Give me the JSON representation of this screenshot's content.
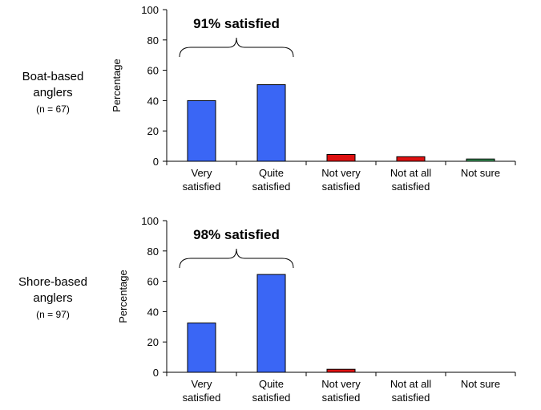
{
  "chart_data": [
    {
      "type": "bar",
      "group_label_lines": [
        "Boat-based",
        "anglers"
      ],
      "group_n": "(n = 67)",
      "ylabel": "Percentage",
      "ylim": [
        0,
        100
      ],
      "yticks": [
        "0",
        "20",
        "40",
        "60",
        "80",
        "100"
      ],
      "categories": [
        [
          "Very",
          "satisfied"
        ],
        [
          "Quite",
          "satisfied"
        ],
        [
          "Not very",
          "satisfied"
        ],
        [
          "Not at all",
          "satisfied"
        ],
        [
          "Not sure"
        ]
      ],
      "values": [
        40,
        50.5,
        4.5,
        3,
        1.5
      ],
      "colors": [
        "#3a66f5",
        "#3a66f5",
        "#dd1111",
        "#dd1111",
        "#3a9a5a"
      ],
      "annotation": "91% satisfied"
    },
    {
      "type": "bar",
      "group_label_lines": [
        "Shore-based",
        "anglers"
      ],
      "group_n": "(n = 97)",
      "ylabel": "Percentage",
      "ylim": [
        0,
        100
      ],
      "yticks": [
        "0",
        "20",
        "40",
        "60",
        "80",
        "100"
      ],
      "categories": [
        [
          "Very",
          "satisfied"
        ],
        [
          "Quite",
          "satisfied"
        ],
        [
          "Not very",
          "satisfied"
        ],
        [
          "Not at all",
          "satisfied"
        ],
        [
          "Not sure"
        ]
      ],
      "values": [
        32.5,
        64.5,
        2,
        0,
        0
      ],
      "colors": [
        "#3a66f5",
        "#3a66f5",
        "#dd1111",
        "#dd1111",
        "#3a9a5a"
      ],
      "annotation": "98% satisfied"
    }
  ]
}
